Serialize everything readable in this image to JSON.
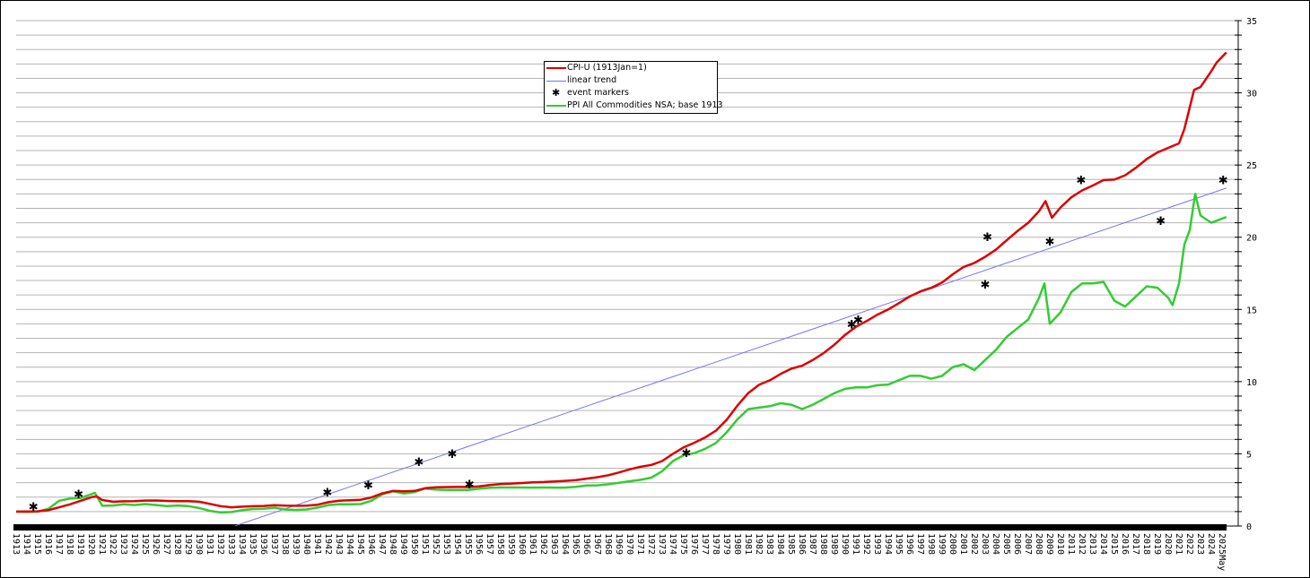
{
  "chart_data": {
    "type": "line",
    "title": "",
    "xlabel": "",
    "ylabel": "",
    "xlim": [
      1913,
      2025.4
    ],
    "ylim": [
      0,
      35
    ],
    "y_ticks": [
      0,
      5,
      10,
      15,
      20,
      25,
      30,
      35
    ],
    "y_minor_step": 1,
    "y_axis_side": "right",
    "grid": true,
    "legend_placement": "top-center",
    "x_tick_labels": [
      "1913",
      "1914",
      "1915",
      "1916",
      "1917",
      "1918",
      "1919",
      "1920",
      "1921",
      "1922",
      "1923",
      "1924",
      "1925",
      "1926",
      "1927",
      "1928",
      "1929",
      "1930",
      "1931",
      "1932",
      "1933",
      "1934",
      "1935",
      "1936",
      "1937",
      "1938",
      "1939",
      "1940",
      "1941",
      "1942",
      "1943",
      "1944",
      "1945",
      "1946",
      "1947",
      "1948",
      "1949",
      "1950",
      "1951",
      "1952",
      "1953",
      "1954",
      "1955",
      "1956",
      "1957",
      "1958",
      "1959",
      "1960",
      "1961",
      "1962",
      "1963",
      "1964",
      "1965",
      "1966",
      "1967",
      "1968",
      "1969",
      "1970",
      "1971",
      "1972",
      "1973",
      "1974",
      "1975",
      "1976",
      "1977",
      "1978",
      "1979",
      "1980",
      "1981",
      "1982",
      "1983",
      "1984",
      "1985",
      "1986",
      "1987",
      "1988",
      "1989",
      "1990",
      "1991",
      "1992",
      "1993",
      "1994",
      "1995",
      "1996",
      "1997",
      "1998",
      "1999",
      "2000",
      "2001",
      "2002",
      "2003",
      "2004",
      "2005",
      "2006",
      "2007",
      "2008",
      "2009",
      "2010",
      "2011",
      "2012",
      "2013",
      "2014",
      "2015",
      "2016",
      "2017",
      "2018",
      "2019",
      "2020",
      "2021",
      "2022",
      "2023",
      "2024",
      "2025May"
    ],
    "series": [
      {
        "name": "CPI-U (1913Jan=1)",
        "color": "#dd0000",
        "x": [
          1913,
          1914,
          1915,
          1916,
          1917,
          1918,
          1919,
          1920,
          1920.5,
          1921,
          1922,
          1923,
          1924,
          1925,
          1926,
          1927,
          1928,
          1929,
          1930,
          1931,
          1932,
          1933,
          1934,
          1935,
          1936,
          1937,
          1938,
          1939,
          1940,
          1941,
          1942,
          1943,
          1944,
          1945,
          1946,
          1947,
          1948,
          1949,
          1950,
          1951,
          1952,
          1953,
          1954,
          1955,
          1956,
          1957,
          1958,
          1959,
          1960,
          1961,
          1962,
          1963,
          1964,
          1965,
          1966,
          1967,
          1968,
          1969,
          1970,
          1971,
          1972,
          1973,
          1974,
          1975,
          1976,
          1977,
          1978,
          1979,
          1980,
          1981,
          1982,
          1983,
          1984,
          1985,
          1986,
          1987,
          1988,
          1989,
          1990,
          1991,
          1992,
          1993,
          1994,
          1995,
          1996,
          1997,
          1998,
          1999,
          2000,
          2001,
          2002,
          2003,
          2004,
          2005,
          2006,
          2007,
          2008,
          2008.6,
          2009.2,
          2010,
          2011,
          2012,
          2013,
          2014,
          2015,
          2016,
          2017,
          2018,
          2019,
          2020,
          2021,
          2021.5,
          2022,
          2022.4,
          2023,
          2024,
          2024.5,
          2025.4
        ],
        "y": [
          1.0,
          1.01,
          1.02,
          1.1,
          1.3,
          1.5,
          1.75,
          2.0,
          2.05,
          1.8,
          1.68,
          1.71,
          1.72,
          1.76,
          1.77,
          1.74,
          1.72,
          1.72,
          1.68,
          1.53,
          1.37,
          1.3,
          1.34,
          1.37,
          1.39,
          1.44,
          1.41,
          1.4,
          1.41,
          1.48,
          1.65,
          1.75,
          1.78,
          1.82,
          1.98,
          2.26,
          2.43,
          2.4,
          2.43,
          2.62,
          2.68,
          2.7,
          2.71,
          2.7,
          2.74,
          2.84,
          2.91,
          2.94,
          2.98,
          3.02,
          3.05,
          3.09,
          3.13,
          3.18,
          3.28,
          3.38,
          3.52,
          3.71,
          3.93,
          4.1,
          4.23,
          4.5,
          5.0,
          5.45,
          5.77,
          6.14,
          6.61,
          7.36,
          8.35,
          9.21,
          9.78,
          10.09,
          10.53,
          10.9,
          11.1,
          11.5,
          11.98,
          12.56,
          13.24,
          13.8,
          14.2,
          14.64,
          15.0,
          15.44,
          15.9,
          16.25,
          16.5,
          16.87,
          17.44,
          17.94,
          18.22,
          18.64,
          19.14,
          19.79,
          20.43,
          21.0,
          21.8,
          22.5,
          21.35,
          22.06,
          22.76,
          23.24,
          23.58,
          23.96,
          23.99,
          24.29,
          24.81,
          25.41,
          25.87,
          26.19,
          26.5,
          27.5,
          29.0,
          30.2,
          30.4,
          31.5,
          32.1,
          32.8
        ]
      },
      {
        "name": "linear trend",
        "color": "#7777ee",
        "x": [
          1933.3,
          2025.4
        ],
        "y": [
          0,
          23.4
        ]
      },
      {
        "name": "PPI All Commodities NSA; base 1913",
        "color": "#33cc33",
        "x": [
          1913,
          1914,
          1915,
          1916,
          1917,
          1918,
          1919,
          1920,
          1920.3,
          1921,
          1922,
          1923,
          1924,
          1925,
          1926,
          1927,
          1928,
          1929,
          1930,
          1931,
          1932,
          1933,
          1934,
          1935,
          1936,
          1937,
          1938,
          1939,
          1940,
          1941,
          1942,
          1943,
          1944,
          1945,
          1946,
          1947,
          1948,
          1949,
          1950,
          1951,
          1952,
          1953,
          1954,
          1955,
          1956,
          1957,
          1958,
          1959,
          1960,
          1961,
          1962,
          1963,
          1964,
          1965,
          1966,
          1967,
          1968,
          1969,
          1970,
          1971,
          1972,
          1973,
          1974,
          1975,
          1976,
          1977,
          1978,
          1979,
          1980,
          1981,
          1982,
          1983,
          1984,
          1985,
          1986,
          1987,
          1988,
          1989,
          1990,
          1991,
          1992,
          1993,
          1994,
          1995,
          1996,
          1997,
          1998,
          1999,
          2000,
          2001,
          2002,
          2003,
          2004,
          2005,
          2006,
          2007,
          2008,
          2008.5,
          2009,
          2010,
          2011,
          2012,
          2013,
          2014,
          2015,
          2016,
          2017,
          2018,
          2019,
          2020,
          2020.4,
          2021,
          2021.5,
          2022,
          2022.5,
          2023,
          2024,
          2025.4
        ],
        "y": [
          1.0,
          0.98,
          1.0,
          1.2,
          1.75,
          1.9,
          1.95,
          2.2,
          2.3,
          1.4,
          1.42,
          1.5,
          1.45,
          1.52,
          1.45,
          1.38,
          1.42,
          1.38,
          1.25,
          1.05,
          0.94,
          0.97,
          1.1,
          1.18,
          1.2,
          1.27,
          1.14,
          1.12,
          1.15,
          1.28,
          1.45,
          1.5,
          1.5,
          1.52,
          1.75,
          2.2,
          2.4,
          2.25,
          2.35,
          2.6,
          2.52,
          2.5,
          2.5,
          2.5,
          2.58,
          2.65,
          2.67,
          2.67,
          2.67,
          2.66,
          2.67,
          2.66,
          2.66,
          2.72,
          2.81,
          2.82,
          2.89,
          2.99,
          3.1,
          3.2,
          3.35,
          3.8,
          4.5,
          4.9,
          5.05,
          5.35,
          5.75,
          6.5,
          7.4,
          8.1,
          8.2,
          8.3,
          8.5,
          8.4,
          8.1,
          8.4,
          8.8,
          9.2,
          9.5,
          9.6,
          9.6,
          9.75,
          9.8,
          10.1,
          10.4,
          10.4,
          10.2,
          10.4,
          11.0,
          11.2,
          10.8,
          11.5,
          12.2,
          13.1,
          13.7,
          14.3,
          15.8,
          16.8,
          14.0,
          14.8,
          16.2,
          16.8,
          16.8,
          16.9,
          15.6,
          15.2,
          15.9,
          16.6,
          16.5,
          15.8,
          15.3,
          16.8,
          19.5,
          20.5,
          23.0,
          21.5,
          21.0,
          21.4
        ]
      }
    ],
    "event_markers": {
      "name": "event markers",
      "x": [
        1914.6,
        1918.8,
        1941.9,
        1945.7,
        1950.4,
        1953.5,
        1955.1,
        1975.25,
        1990.6,
        1991.2,
        2003.2,
        2003.0,
        2009.0,
        2011.9,
        2019.3,
        2025.1
      ],
      "y": [
        1.37,
        2.23,
        2.36,
        2.86,
        4.47,
        5.03,
        2.92,
        5.09,
        14.0,
        14.3,
        20.05,
        16.76,
        19.74,
        24.0,
        21.17,
        24.0
      ]
    }
  },
  "legend": {
    "items": [
      {
        "label": "CPI-U (1913Jan=1)",
        "kind": "line",
        "color": "#dd0000"
      },
      {
        "label": "linear trend",
        "kind": "line",
        "color": "#7777ee"
      },
      {
        "label": "event markers",
        "kind": "marker",
        "symbol": "✱"
      },
      {
        "label": "PPI All Commodities NSA; base 1913",
        "kind": "line",
        "color": "#33cc33"
      }
    ]
  }
}
